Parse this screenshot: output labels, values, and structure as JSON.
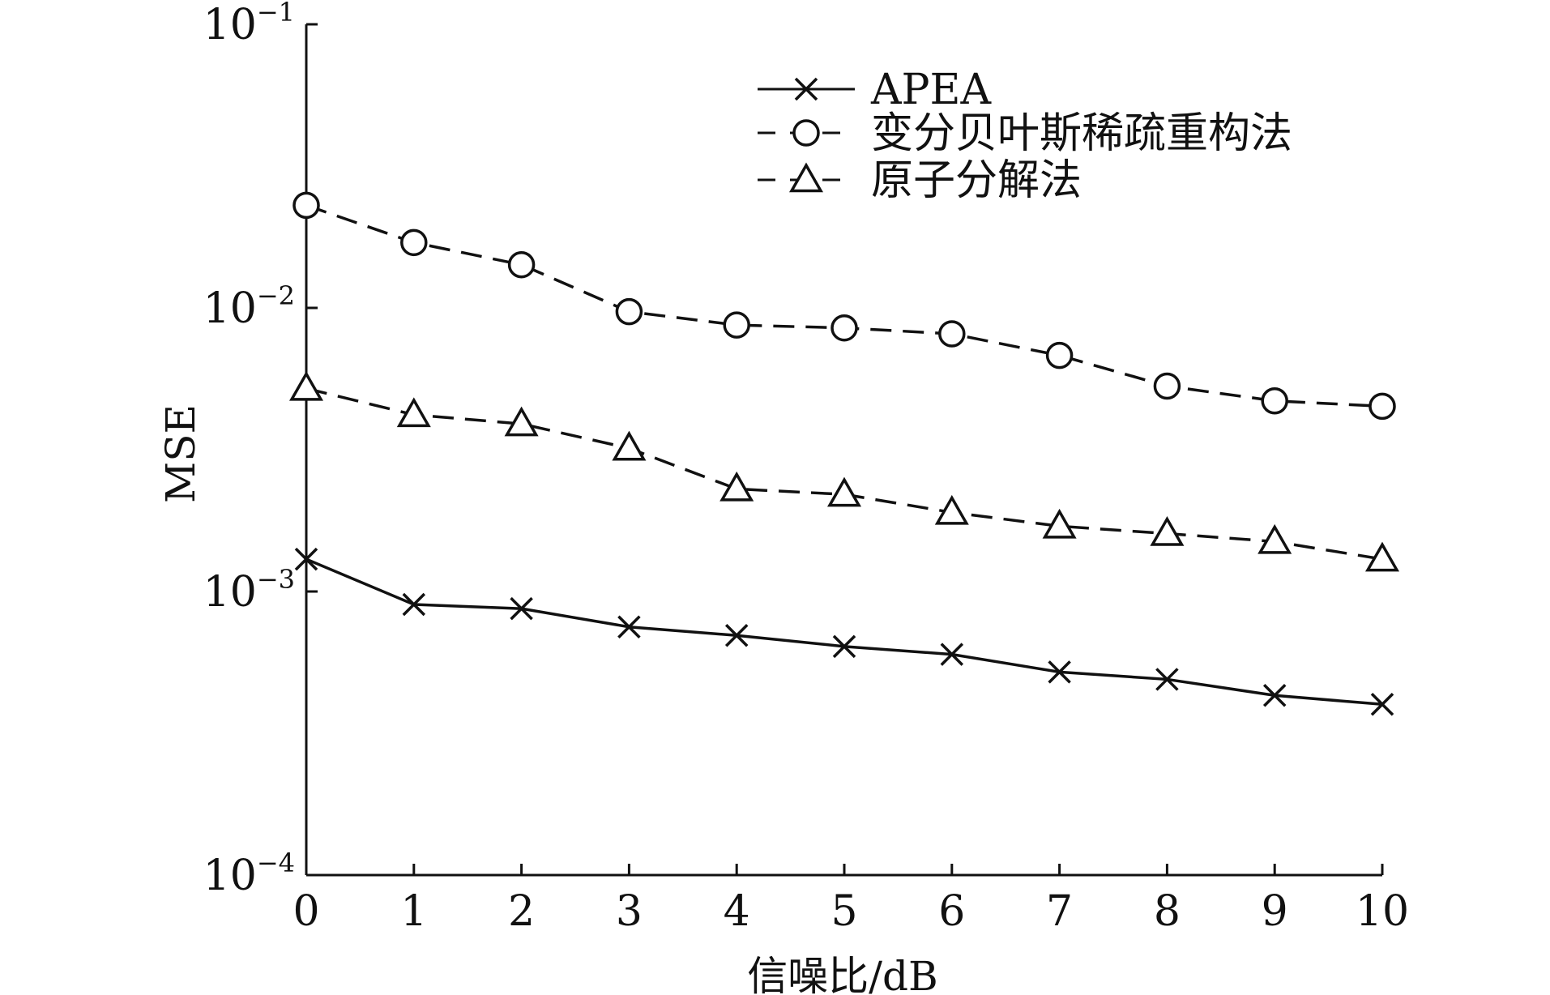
{
  "chart_data": {
    "type": "line",
    "title": "",
    "xlabel": "信噪比/dB",
    "ylabel": "MSE",
    "xlim": [
      0,
      10
    ],
    "ylim": [
      0.0001,
      0.1
    ],
    "yscale": "log",
    "grid": false,
    "legend_position": "top-right",
    "x": [
      0,
      1,
      2,
      3,
      4,
      5,
      6,
      7,
      8,
      9,
      10
    ],
    "x_tick_labels": [
      "0",
      "1",
      "2",
      "3",
      "4",
      "5",
      "6",
      "7",
      "8",
      "9",
      "10"
    ],
    "y_ticks": [
      {
        "value": 0.1,
        "base": "10",
        "exp": "−1"
      },
      {
        "value": 0.01,
        "base": "10",
        "exp": "−2"
      },
      {
        "value": 0.001,
        "base": "10",
        "exp": "−3"
      },
      {
        "value": 0.0001,
        "base": "10",
        "exp": "−4"
      }
    ],
    "series": [
      {
        "name": "APEA",
        "marker": "x",
        "line_style": "solid",
        "color": "#111111",
        "values": [
          0.0013,
          0.0009,
          0.00087,
          0.00075,
          0.0007,
          0.00064,
          0.0006,
          0.00052,
          0.00049,
          0.00043,
          0.0004
        ]
      },
      {
        "name": "变分贝叶斯稀疏重构法",
        "marker": "circle",
        "line_style": "dashed",
        "color": "#111111",
        "values": [
          0.023,
          0.017,
          0.0142,
          0.0097,
          0.0087,
          0.0085,
          0.0081,
          0.0068,
          0.0053,
          0.0047,
          0.0045
        ]
      },
      {
        "name": "原子分解法",
        "marker": "triangle",
        "line_style": "dashed",
        "color": "#111111",
        "values": [
          0.0052,
          0.0042,
          0.0039,
          0.0032,
          0.0023,
          0.0022,
          0.0019,
          0.0017,
          0.0016,
          0.0015,
          0.0013
        ]
      }
    ]
  }
}
